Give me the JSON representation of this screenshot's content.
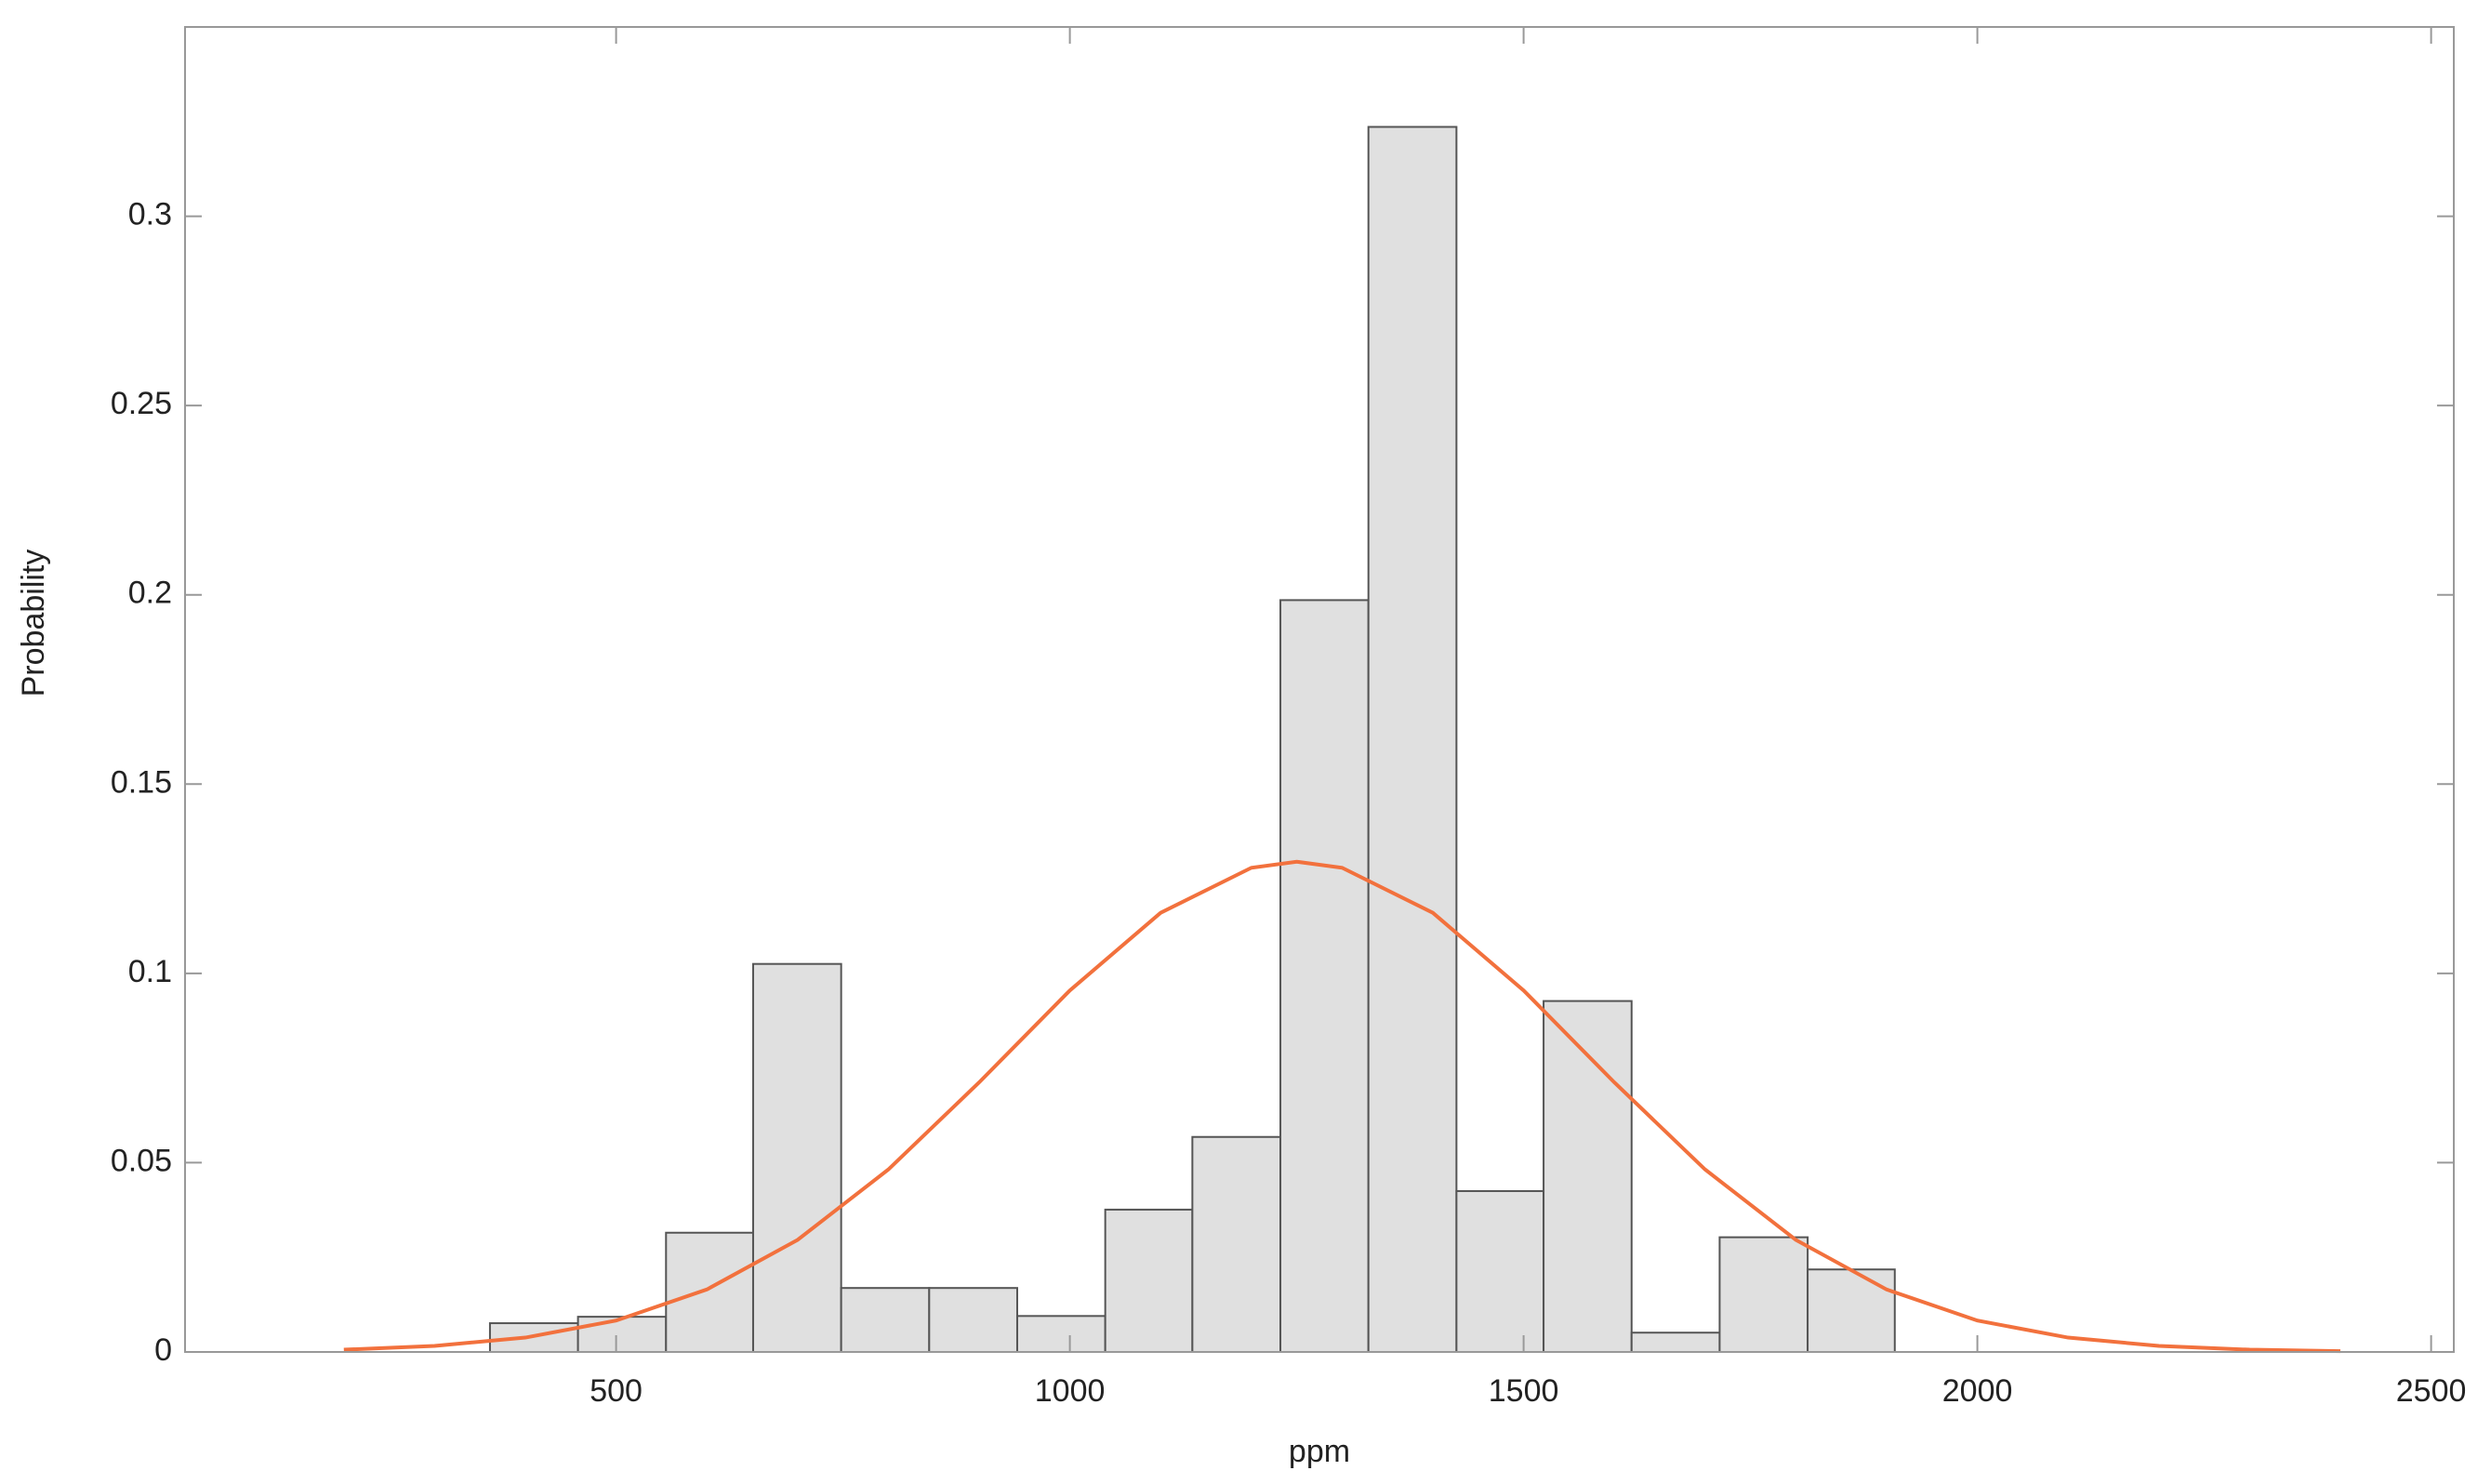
{
  "chart_data": {
    "type": "histogram",
    "xlabel": "ppm",
    "ylabel": "Probability",
    "bins": [
      361,
      458,
      555,
      651,
      748,
      845,
      942,
      1039,
      1135,
      1232,
      1329,
      1426,
      1522,
      1619,
      1716,
      1813,
      1909
    ],
    "values": [
      0.0076,
      0.0093,
      0.0315,
      0.1025,
      0.0169,
      0.0169,
      0.0095,
      0.0376,
      0.0568,
      0.1986,
      0.3236,
      0.0425,
      0.0927,
      0.0051,
      0.0303,
      0.0218
    ],
    "color": "#e0e0e0",
    "edgecolor": "#555555",
    "fit": {
      "type": "line",
      "color": "#f2713d",
      "x": [
        200,
        300,
        400,
        500,
        600,
        700,
        800,
        900,
        1000,
        1100,
        1200,
        1250,
        1300,
        1400,
        1500,
        1600,
        1700,
        1800,
        1900,
        2000,
        2100,
        2200,
        2300,
        2400
      ],
      "values": [
        0.0006,
        0.0016,
        0.0038,
        0.0083,
        0.0165,
        0.0296,
        0.0482,
        0.0712,
        0.0955,
        0.116,
        0.1279,
        0.1295,
        0.1279,
        0.116,
        0.0955,
        0.0712,
        0.0482,
        0.0296,
        0.0165,
        0.0083,
        0.0038,
        0.0016,
        0.0006,
        0.0002
      ]
    },
    "xlim": [
      25,
      2525
    ],
    "ylim": [
      0,
      0.35
    ],
    "xticks": [
      500,
      1000,
      1500,
      2000,
      2500
    ],
    "yticks": [
      0,
      0.05,
      0.1,
      0.15,
      0.2,
      0.25,
      0.3
    ]
  }
}
